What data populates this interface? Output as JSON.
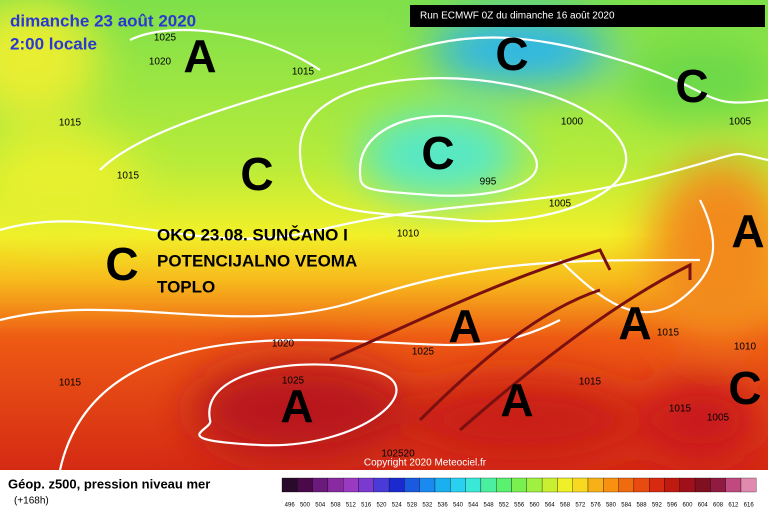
{
  "header": {
    "date": "dimanche 23 août 2020",
    "time": "2:00 locale",
    "run": "Run ECMWF 0Z du dimanche 16 août 2020"
  },
  "overlay": {
    "lines": [
      "OKO 23.08. SUNČANO I",
      "POTENCIJALNO VEOMA",
      "TOPLO"
    ]
  },
  "map": {
    "isobar_labels": [
      "1025",
      "1020",
      "1015",
      "1015",
      "1015",
      "1000",
      "995",
      "1005",
      "1005",
      "1010",
      "1020",
      "1025",
      "1025",
      "1015",
      "1015",
      "1015",
      "1015",
      "1010",
      "1005",
      "102520"
    ],
    "symbols": [
      "A",
      "C",
      "C",
      "C",
      "C",
      "C",
      "A",
      "A",
      "A",
      "A",
      "A",
      "C"
    ],
    "copyright": "Copyright 2020 Meteociel.fr"
  },
  "legend": {
    "title": "Géop. z500, pression niveau mer",
    "lead": "(+168h)",
    "labels": [
      "496",
      "500",
      "504",
      "508",
      "512",
      "516",
      "520",
      "524",
      "528",
      "532",
      "536",
      "540",
      "544",
      "548",
      "552",
      "556",
      "560",
      "564",
      "568",
      "572",
      "576",
      "580",
      "584",
      "588",
      "592",
      "596",
      "600",
      "604",
      "608",
      "612",
      "616"
    ]
  }
}
